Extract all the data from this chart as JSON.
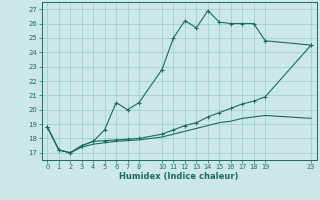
{
  "xlabel": "Humidex (Indice chaleur)",
  "bg_color": "#cce8e6",
  "grid_color": "#99ccc8",
  "line_color": "#1a6b62",
  "xlim": [
    -0.5,
    23.5
  ],
  "ylim": [
    16.5,
    27.5
  ],
  "yticks": [
    17,
    18,
    19,
    20,
    21,
    22,
    23,
    24,
    25,
    26,
    27
  ],
  "xticks": [
    0,
    1,
    2,
    3,
    4,
    5,
    6,
    7,
    8,
    10,
    11,
    12,
    13,
    14,
    15,
    16,
    17,
    18,
    19,
    23
  ],
  "series1_x": [
    0,
    1,
    2,
    3,
    4,
    5,
    6,
    7,
    8,
    10,
    11,
    12,
    13,
    14,
    15,
    16,
    17,
    18,
    19,
    23
  ],
  "series1_y": [
    18.8,
    17.2,
    17.0,
    17.5,
    17.8,
    18.6,
    20.5,
    20.0,
    20.5,
    22.8,
    25.0,
    26.2,
    25.7,
    26.9,
    26.1,
    26.0,
    26.0,
    26.0,
    24.8,
    24.5
  ],
  "series2_x": [
    0,
    1,
    2,
    3,
    4,
    5,
    6,
    7,
    8,
    10,
    11,
    12,
    13,
    14,
    15,
    16,
    17,
    18,
    19,
    23
  ],
  "series2_y": [
    18.8,
    17.2,
    17.0,
    17.5,
    17.8,
    17.85,
    17.9,
    17.95,
    18.0,
    18.3,
    18.6,
    18.9,
    19.1,
    19.5,
    19.8,
    20.1,
    20.4,
    20.6,
    20.9,
    24.5
  ],
  "series3_x": [
    0,
    1,
    2,
    3,
    4,
    5,
    6,
    7,
    8,
    10,
    11,
    12,
    13,
    14,
    15,
    16,
    17,
    18,
    19,
    23
  ],
  "series3_y": [
    18.8,
    17.2,
    17.0,
    17.4,
    17.6,
    17.7,
    17.8,
    17.85,
    17.9,
    18.1,
    18.3,
    18.5,
    18.7,
    18.9,
    19.1,
    19.2,
    19.4,
    19.5,
    19.6,
    19.4
  ]
}
